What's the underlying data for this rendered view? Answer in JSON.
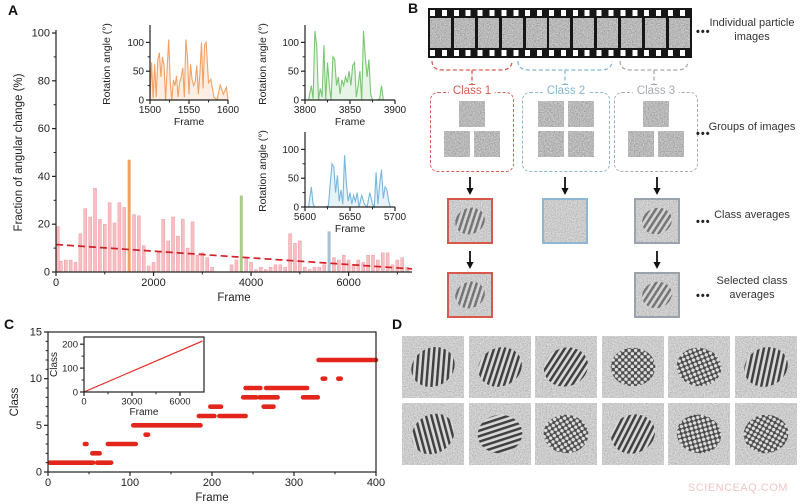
{
  "panels": {
    "a": "A",
    "b": "B",
    "c": "C",
    "d": "D"
  },
  "watermark": "SCIENCEAQ.COM",
  "ellipsis": "•••",
  "panelB": {
    "film_frame_count": 11,
    "row_labels": [
      "Individual particle images",
      "Groups of images",
      "Class averages",
      "Selected class averages"
    ],
    "classes": [
      {
        "name": "Class 1",
        "color": "#d95c50",
        "group_rows": [
          1,
          2
        ]
      },
      {
        "name": "Class 2",
        "color": "#85b7d4",
        "group_rows": [
          2,
          2
        ]
      },
      {
        "name": "Class 3",
        "color": "#a6abb3",
        "group_rows": [
          1,
          2
        ]
      }
    ],
    "class_averages": [
      {
        "class": "Class 1",
        "border_color": "#d9584e",
        "pattern": "stripe",
        "angle": -48
      },
      {
        "class": "Class 2",
        "border_color": "#8fb6d2",
        "pattern": "none",
        "angle": 0
      },
      {
        "class": "Class 3",
        "border_color": "#9aa2ac",
        "pattern": "stripe",
        "angle": -38
      }
    ],
    "selected_class_averages": [
      {
        "class": "Class 1",
        "border_color": "#d9584e",
        "pattern": "stripe",
        "angle": -48
      },
      {
        "class": "Class 3",
        "border_color": "#9aa2ac",
        "pattern": "stripe",
        "angle": -38
      }
    ]
  },
  "panelD": {
    "tiles": [
      {
        "pattern": "stripe",
        "angle": -57
      },
      {
        "pattern": "stripe",
        "angle": -48
      },
      {
        "pattern": "stripe",
        "angle": -38
      },
      {
        "pattern": "check",
        "angle": 0
      },
      {
        "pattern": "check",
        "angle": 15
      },
      {
        "pattern": "stripe",
        "angle": -52
      },
      {
        "pattern": "stripe",
        "angle": -70
      },
      {
        "pattern": "stripe",
        "angle": -12
      },
      {
        "pattern": "check",
        "angle": 8
      },
      {
        "pattern": "stripe",
        "angle": -42
      },
      {
        "pattern": "check",
        "angle": 20
      },
      {
        "pattern": "check",
        "angle": -10
      }
    ]
  },
  "chart_data": [
    {
      "id": "a_main",
      "type": "bar",
      "xlabel": "Frame",
      "ylabel": "Fraction of angular change (%)",
      "xlim": [
        0,
        7300
      ],
      "ylim": [
        0,
        100
      ],
      "xticks": [
        0,
        2000,
        4000,
        6000
      ],
      "xminor": [
        1000,
        3000,
        5000,
        7000
      ],
      "yticks": [
        0,
        20,
        40,
        60,
        80,
        100
      ],
      "yminor": [
        10,
        30,
        50,
        70,
        90
      ],
      "bar_color": "#f7bfc3",
      "bar_edge": "#ee9aa2",
      "bars": {
        "x_start": 0,
        "x_step": 100,
        "bar_width_x": 62,
        "values": [
          19,
          4.5,
          5,
          5,
          4,
          16,
          26.5,
          23,
          35,
          22,
          20,
          29,
          20.5,
          29,
          27,
          47,
          24,
          23.5,
          11,
          2.5,
          4,
          8,
          22,
          13,
          23,
          15,
          22,
          10,
          21,
          7,
          8,
          6,
          2,
          0,
          0,
          0,
          3,
          5,
          32,
          6,
          4,
          1,
          2,
          1,
          2,
          3,
          3,
          2,
          16,
          12,
          13,
          2,
          1,
          2,
          2,
          3,
          17,
          6,
          5,
          7,
          5,
          3,
          5,
          4,
          7,
          7,
          5,
          8,
          8,
          3,
          5,
          6,
          2
        ]
      },
      "highlights": [
        {
          "x": 1500,
          "value": 47,
          "color": "#f0a361"
        },
        {
          "x": 3800,
          "value": 32,
          "color": "#aecb8b"
        },
        {
          "x": 5600,
          "value": 17,
          "color": "#a9bfd2"
        }
      ],
      "trend": {
        "x": [
          0,
          7300
        ],
        "y": [
          11.5,
          1.3
        ],
        "color": "#d42027"
      }
    },
    {
      "id": "a_inset1",
      "type": "line",
      "color": "#f0a264",
      "xlabel": "Frame",
      "ylabel": "Rotation angle (°)",
      "xlim": [
        1500,
        1600
      ],
      "ylim": [
        0,
        125
      ],
      "xticks": [
        1500,
        1550,
        1600
      ],
      "xminor": [
        1525,
        1575
      ],
      "yticks": [
        0,
        50,
        100
      ],
      "yminor": [
        25,
        75
      ],
      "fill_opacity": 0.18,
      "x": [
        1500,
        1502,
        1504,
        1506,
        1508,
        1510,
        1512,
        1514,
        1516,
        1518,
        1520,
        1522,
        1524,
        1526,
        1528,
        1530,
        1532,
        1534,
        1536,
        1538,
        1540,
        1542,
        1544,
        1546,
        1548,
        1550,
        1552,
        1554,
        1556,
        1558,
        1560,
        1562,
        1564,
        1566,
        1568,
        1570,
        1572,
        1575,
        1578,
        1582,
        1586,
        1590,
        1594,
        1598,
        1600
      ],
      "y": [
        0,
        65,
        3,
        62,
        5,
        70,
        82,
        40,
        75,
        60,
        0,
        55,
        105,
        30,
        0,
        35,
        25,
        42,
        5,
        30,
        40,
        56,
        5,
        105,
        75,
        10,
        62,
        35,
        25,
        32,
        60,
        10,
        46,
        100,
        20,
        96,
        100,
        30,
        36,
        5,
        0,
        26,
        10,
        22,
        0
      ]
    },
    {
      "id": "a_inset2",
      "type": "line",
      "color": "#7cc576",
      "xlabel": "Frame",
      "ylabel": "Rotation angle (°)",
      "xlim": [
        3800,
        3900
      ],
      "ylim": [
        0,
        125
      ],
      "xticks": [
        3800,
        3850,
        3900
      ],
      "xminor": [
        3825,
        3875
      ],
      "yticks": [
        0,
        50,
        100
      ],
      "yminor": [
        25,
        75
      ],
      "fill_opacity": 0.18,
      "x": [
        3800,
        3804,
        3807,
        3809,
        3811,
        3813,
        3815,
        3817,
        3819,
        3821,
        3823,
        3825,
        3827,
        3829,
        3831,
        3833,
        3835,
        3837,
        3839,
        3841,
        3843,
        3845,
        3847,
        3849,
        3851,
        3853,
        3855,
        3857,
        3859,
        3861,
        3863,
        3865,
        3867,
        3869,
        3871,
        3873,
        3875,
        3877,
        3880,
        3883,
        3885,
        3887,
        3890,
        3895,
        3900
      ],
      "y": [
        0,
        0,
        25,
        2,
        120,
        95,
        0,
        20,
        5,
        95,
        0,
        65,
        25,
        0,
        75,
        70,
        25,
        40,
        10,
        35,
        25,
        40,
        30,
        50,
        25,
        60,
        65,
        5,
        25,
        50,
        0,
        120,
        75,
        40,
        70,
        10,
        0,
        0,
        0,
        2,
        25,
        0,
        0,
        0,
        0
      ]
    },
    {
      "id": "a_inset3",
      "type": "line",
      "color": "#79b8de",
      "xlabel": "Frame",
      "ylabel": "Rotation angle (°)",
      "xlim": [
        5600,
        5700
      ],
      "ylim": [
        0,
        125
      ],
      "xticks": [
        5600,
        5650,
        5700
      ],
      "xminor": [
        5625,
        5675
      ],
      "yticks": [
        0,
        50,
        100
      ],
      "yminor": [
        25,
        75
      ],
      "fill_opacity": 0.18,
      "x": [
        5600,
        5604,
        5607,
        5609,
        5611,
        5614,
        5618,
        5622,
        5626,
        5628,
        5630,
        5632,
        5634,
        5636,
        5638,
        5640,
        5642,
        5644,
        5646,
        5648,
        5650,
        5652,
        5654,
        5656,
        5658,
        5660,
        5663,
        5666,
        5669,
        5672,
        5675,
        5677,
        5679,
        5681,
        5683,
        5685,
        5687,
        5689,
        5691,
        5693,
        5695,
        5697,
        5698,
        5699,
        5700
      ],
      "y": [
        0,
        0,
        35,
        5,
        0,
        0,
        0,
        0,
        2,
        40,
        75,
        70,
        25,
        55,
        10,
        30,
        5,
        90,
        40,
        10,
        25,
        5,
        20,
        10,
        25,
        0,
        20,
        5,
        0,
        25,
        5,
        0,
        60,
        5,
        40,
        65,
        15,
        35,
        30,
        10,
        0,
        0,
        0,
        0,
        0
      ]
    },
    {
      "id": "c_main",
      "type": "segments",
      "color": "#e3261c",
      "box": true,
      "xlabel": "Frame",
      "ylabel": "Class",
      "xlim": [
        0,
        400
      ],
      "ylim": [
        0,
        15
      ],
      "xticks": [
        0,
        100,
        200,
        300,
        400
      ],
      "xminor": [
        50,
        150,
        250,
        350
      ],
      "yticks": [
        0,
        5,
        10,
        15
      ],
      "yminor": [
        1,
        2,
        3,
        4,
        6,
        7,
        8,
        9,
        11,
        12,
        13,
        14
      ],
      "segments": [
        [
          1,
          2,
          55
        ],
        [
          1,
          60,
          77
        ],
        [
          2,
          54,
          63
        ],
        [
          3,
          45,
          47
        ],
        [
          3,
          73,
          107
        ],
        [
          4,
          119,
          122
        ],
        [
          5,
          104,
          186
        ],
        [
          6,
          184,
          203
        ],
        [
          6,
          209,
          241
        ],
        [
          7,
          198,
          211
        ],
        [
          7,
          263,
          275
        ],
        [
          8,
          238,
          254
        ],
        [
          8,
          258,
          280
        ],
        [
          8,
          311,
          329
        ],
        [
          9,
          241,
          249
        ],
        [
          9,
          252,
          259
        ],
        [
          9,
          266,
          316
        ],
        [
          10,
          335,
          338
        ],
        [
          10,
          354,
          357
        ],
        [
          12,
          330,
          400
        ]
      ]
    },
    {
      "id": "c_inset",
      "type": "line",
      "color": "#e3261c",
      "box": true,
      "xlabel": "Frame",
      "ylabel": "Class",
      "xlim": [
        0,
        7500
      ],
      "ylim": [
        0,
        230
      ],
      "xticks": [
        0,
        3000,
        6000
      ],
      "xminor": [
        1500,
        4500
      ],
      "yticks": [
        0,
        100,
        200
      ],
      "yminor": [
        50,
        150
      ],
      "fill_opacity": 0,
      "x": [
        0,
        7400
      ],
      "y": [
        0,
        213
      ]
    }
  ]
}
